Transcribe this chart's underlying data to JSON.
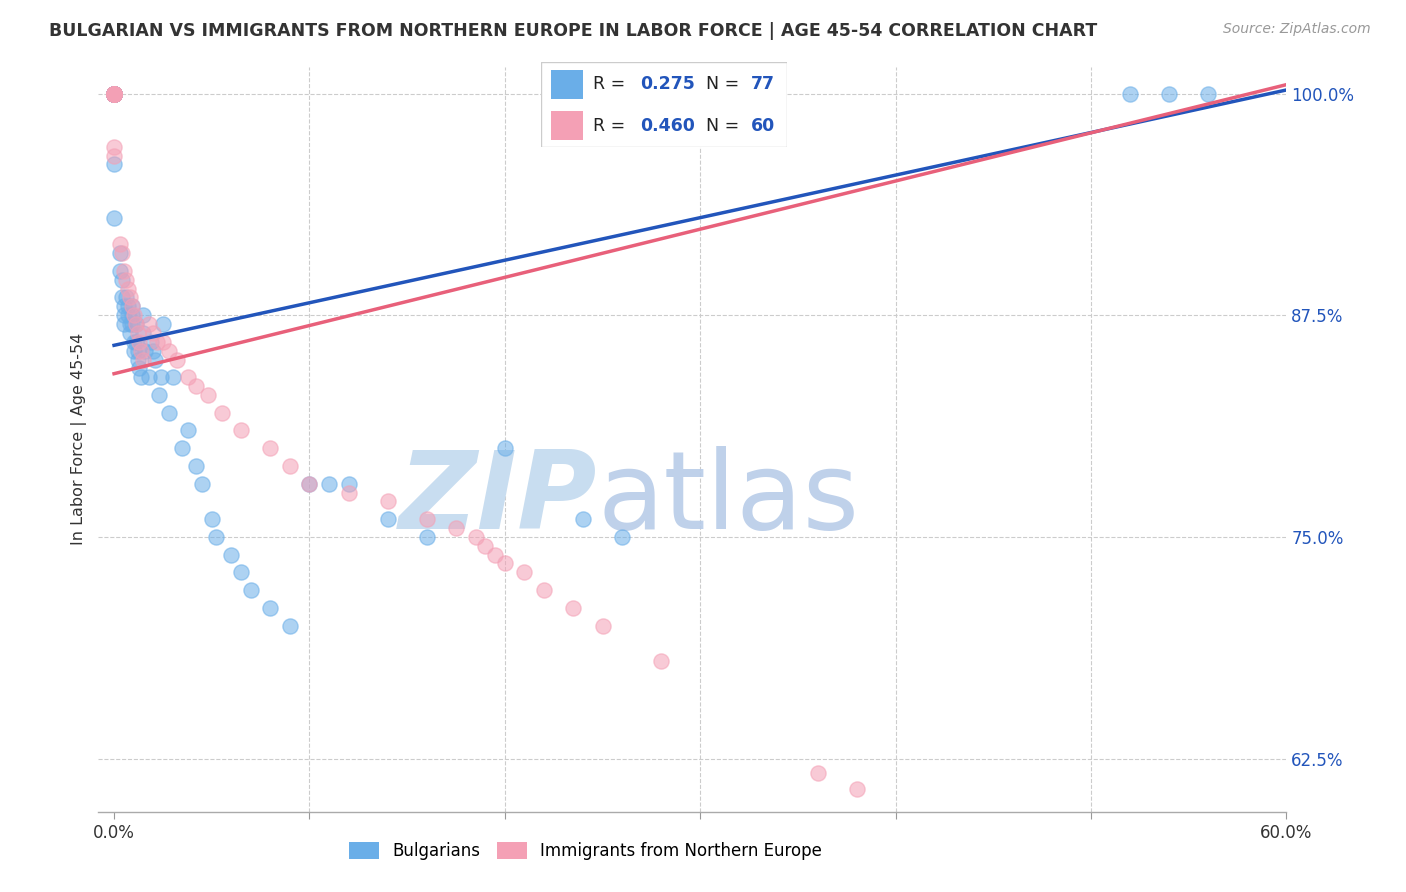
{
  "title": "BULGARIAN VS IMMIGRANTS FROM NORTHERN EUROPE IN LABOR FORCE | AGE 45-54 CORRELATION CHART",
  "source": "Source: ZipAtlas.com",
  "ylabel": "In Labor Force | Age 45-54",
  "xmin": 0.0,
  "xmax": 0.6,
  "ymin": 0.595,
  "ymax": 1.015,
  "yticks": [
    0.625,
    0.75,
    0.875,
    1.0
  ],
  "ytick_labels": [
    "62.5%",
    "75.0%",
    "87.5%",
    "100.0%"
  ],
  "xtick_positions": [
    0.0,
    0.1,
    0.2,
    0.3,
    0.4,
    0.5,
    0.6
  ],
  "xtick_labels": [
    "0.0%",
    "",
    "",
    "",
    "",
    "",
    "60.0%"
  ],
  "blue_R": 0.275,
  "blue_N": 77,
  "pink_R": 0.46,
  "pink_N": 60,
  "blue_color": "#6aaee8",
  "pink_color": "#f4a0b5",
  "blue_line_color": "#2255bb",
  "pink_line_color": "#e8607a",
  "blue_line_x": [
    0.0,
    0.6
  ],
  "blue_line_y": [
    0.858,
    1.002
  ],
  "pink_line_x": [
    0.0,
    0.6
  ],
  "pink_line_y": [
    0.842,
    1.005
  ],
  "watermark_zip_color": "#c8ddf0",
  "watermark_atlas_color": "#b8cce8",
  "blue_x": [
    0.0,
    0.0,
    0.0,
    0.0,
    0.0,
    0.0,
    0.0,
    0.0,
    0.0,
    0.0,
    0.0,
    0.0,
    0.0,
    0.0,
    0.0,
    0.0,
    0.0,
    0.0,
    0.0,
    0.0,
    0.003,
    0.003,
    0.004,
    0.004,
    0.005,
    0.005,
    0.005,
    0.006,
    0.007,
    0.007,
    0.008,
    0.008,
    0.009,
    0.009,
    0.009,
    0.01,
    0.01,
    0.011,
    0.011,
    0.012,
    0.012,
    0.013,
    0.014,
    0.015,
    0.015,
    0.016,
    0.018,
    0.019,
    0.02,
    0.021,
    0.023,
    0.024,
    0.025,
    0.028,
    0.03,
    0.035,
    0.038,
    0.042,
    0.045,
    0.05,
    0.052,
    0.06,
    0.065,
    0.07,
    0.08,
    0.09,
    0.1,
    0.11,
    0.12,
    0.14,
    0.16,
    0.2,
    0.24,
    0.26,
    0.52,
    0.54,
    0.56
  ],
  "blue_y": [
    1.0,
    1.0,
    1.0,
    1.0,
    1.0,
    1.0,
    1.0,
    1.0,
    1.0,
    1.0,
    1.0,
    1.0,
    1.0,
    1.0,
    1.0,
    1.0,
    1.0,
    1.0,
    0.96,
    0.93,
    0.91,
    0.9,
    0.895,
    0.885,
    0.88,
    0.875,
    0.87,
    0.885,
    0.88,
    0.875,
    0.87,
    0.865,
    0.88,
    0.875,
    0.87,
    0.86,
    0.855,
    0.87,
    0.86,
    0.855,
    0.85,
    0.845,
    0.84,
    0.875,
    0.865,
    0.855,
    0.84,
    0.86,
    0.855,
    0.85,
    0.83,
    0.84,
    0.87,
    0.82,
    0.84,
    0.8,
    0.81,
    0.79,
    0.78,
    0.76,
    0.75,
    0.74,
    0.73,
    0.72,
    0.71,
    0.7,
    0.78,
    0.78,
    0.78,
    0.76,
    0.75,
    0.8,
    0.76,
    0.75,
    1.0,
    1.0,
    1.0
  ],
  "pink_x": [
    0.0,
    0.0,
    0.0,
    0.0,
    0.0,
    0.0,
    0.0,
    0.0,
    0.0,
    0.0,
    0.0,
    0.0,
    0.0,
    0.0,
    0.0,
    0.0,
    0.0,
    0.0,
    0.003,
    0.004,
    0.005,
    0.006,
    0.007,
    0.008,
    0.009,
    0.01,
    0.011,
    0.012,
    0.013,
    0.014,
    0.015,
    0.018,
    0.02,
    0.022,
    0.025,
    0.028,
    0.032,
    0.038,
    0.042,
    0.048,
    0.055,
    0.065,
    0.08,
    0.09,
    0.1,
    0.12,
    0.14,
    0.16,
    0.175,
    0.185,
    0.19,
    0.195,
    0.2,
    0.21,
    0.22,
    0.235,
    0.25,
    0.28,
    0.36,
    0.38
  ],
  "pink_y": [
    1.0,
    1.0,
    1.0,
    1.0,
    1.0,
    1.0,
    1.0,
    1.0,
    1.0,
    1.0,
    1.0,
    1.0,
    1.0,
    1.0,
    1.0,
    1.0,
    0.97,
    0.965,
    0.915,
    0.91,
    0.9,
    0.895,
    0.89,
    0.885,
    0.88,
    0.875,
    0.87,
    0.865,
    0.86,
    0.855,
    0.85,
    0.87,
    0.865,
    0.86,
    0.86,
    0.855,
    0.85,
    0.84,
    0.835,
    0.83,
    0.82,
    0.81,
    0.8,
    0.79,
    0.78,
    0.775,
    0.77,
    0.76,
    0.755,
    0.75,
    0.745,
    0.74,
    0.735,
    0.73,
    0.72,
    0.71,
    0.7,
    0.68,
    0.617,
    0.608
  ]
}
